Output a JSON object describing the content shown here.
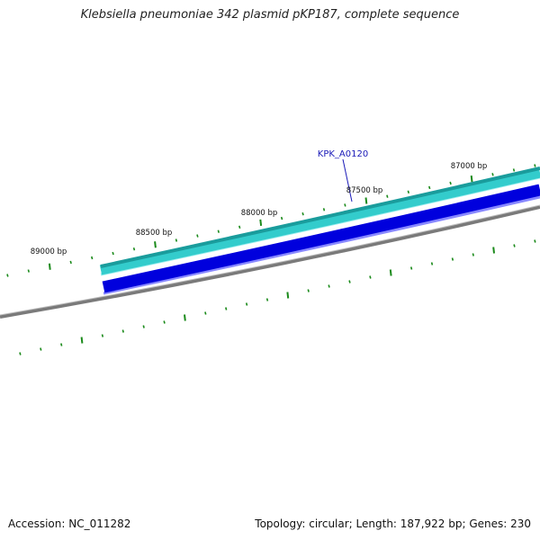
{
  "title": "Klebsiella pneumoniae 342 plasmid pKP187, complete sequence",
  "scale_labels": [
    "87000 bp",
    "87500 bp",
    "88000 bp",
    "88500 bp",
    "89000 bp"
  ],
  "gene_label": "KPK_A0120",
  "footer": {
    "accession": "Accession: NC_011282",
    "summary": "Topology: circular; Length: 187,922 bp; Genes: 230"
  },
  "colors": {
    "backbone": "#7a7a7a",
    "forward_gene": "#33cccc",
    "forward_gene_edge": "#1a9c9c",
    "reverse_gene": "#0000dd",
    "tick": "#1a8a1a",
    "gene_label": "#1a1ab8"
  }
}
